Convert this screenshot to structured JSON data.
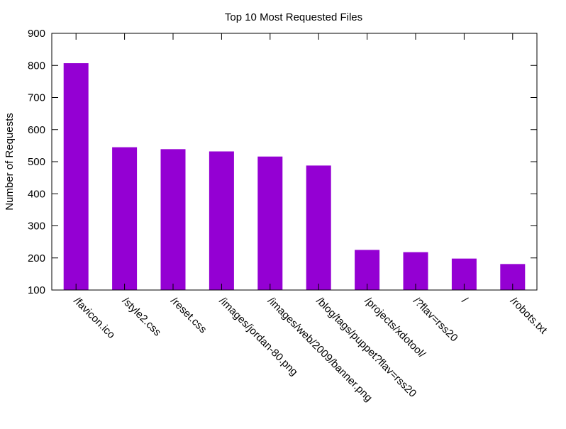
{
  "chart_data": {
    "type": "bar",
    "title": "Top 10 Most Requested Files",
    "xlabel": "",
    "ylabel": "Number of Requests",
    "ylim": [
      100,
      900
    ],
    "yticks": [
      100,
      200,
      300,
      400,
      500,
      600,
      700,
      800,
      900
    ],
    "grid": false,
    "legend": "none",
    "bar_color": "#9400d3",
    "categories": [
      "/favicon.ico",
      "/style2.css",
      "/reset.css",
      "/images/jordan-80.png",
      "/images/web/2009/banner.png",
      "/blog/tags/puppet?flav=rss20",
      "/projects/xdotool/",
      "/?flav=rss20",
      "/",
      "/robots.txt"
    ],
    "values": [
      807,
      545,
      539,
      532,
      516,
      488,
      225,
      218,
      198,
      181
    ]
  }
}
